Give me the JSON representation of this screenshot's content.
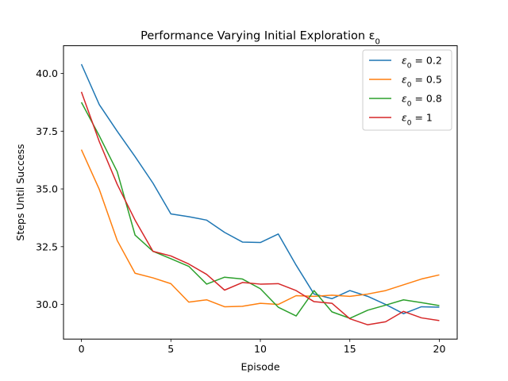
{
  "chart_data": {
    "type": "line",
    "title": "Performance Varying Initial Exploration ε",
    "title_sub": "0",
    "xlabel": "Episode",
    "ylabel": "Steps Until Success",
    "xlim": [
      -1,
      21
    ],
    "ylim": [
      28.5,
      41.2
    ],
    "xticks": [
      0,
      5,
      10,
      15,
      20
    ],
    "yticks": [
      30.0,
      32.5,
      35.0,
      37.5,
      40.0
    ],
    "grid": false,
    "legend_position": "upper-right",
    "x": [
      0,
      1,
      2,
      3,
      4,
      5,
      6,
      7,
      8,
      9,
      10,
      11,
      12,
      13,
      14,
      15,
      16,
      17,
      18,
      19,
      20
    ],
    "series": [
      {
        "name_sym": "ε",
        "name_sub": "0",
        "name_rest": " = 0.2",
        "color": "#1f77b4",
        "values": [
          40.4,
          38.65,
          37.5,
          36.4,
          35.25,
          33.92,
          33.8,
          33.65,
          33.12,
          32.7,
          32.68,
          33.05,
          31.7,
          30.45,
          30.25,
          30.6,
          30.35,
          30.0,
          29.6,
          29.9,
          29.88
        ]
      },
      {
        "name_sym": "ε",
        "name_sub": "0",
        "name_rest": " = 0.5",
        "color": "#ff7f0e",
        "values": [
          36.7,
          34.98,
          32.77,
          31.35,
          31.15,
          30.9,
          30.1,
          30.2,
          29.9,
          29.92,
          30.05,
          30.0,
          30.38,
          30.35,
          30.4,
          30.35,
          30.45,
          30.6,
          30.85,
          31.1,
          31.28
        ]
      },
      {
        "name_sym": "ε",
        "name_sub": "0",
        "name_rest": " = 0.8",
        "color": "#2ca02c",
        "values": [
          38.75,
          37.3,
          35.75,
          33.0,
          32.3,
          31.98,
          31.65,
          30.88,
          31.18,
          31.1,
          30.68,
          29.88,
          29.5,
          30.6,
          29.68,
          29.4,
          29.75,
          29.97,
          30.2,
          30.08,
          29.95
        ]
      },
      {
        "name_sym": "ε",
        "name_sub": "0",
        "name_rest": " = 1",
        "color": "#d62728",
        "values": [
          39.2,
          37.05,
          35.2,
          33.65,
          32.3,
          32.1,
          31.75,
          31.3,
          30.62,
          30.95,
          30.88,
          30.9,
          30.6,
          30.12,
          30.05,
          29.38,
          29.12,
          29.25,
          29.7,
          29.42,
          29.3
        ]
      }
    ]
  }
}
